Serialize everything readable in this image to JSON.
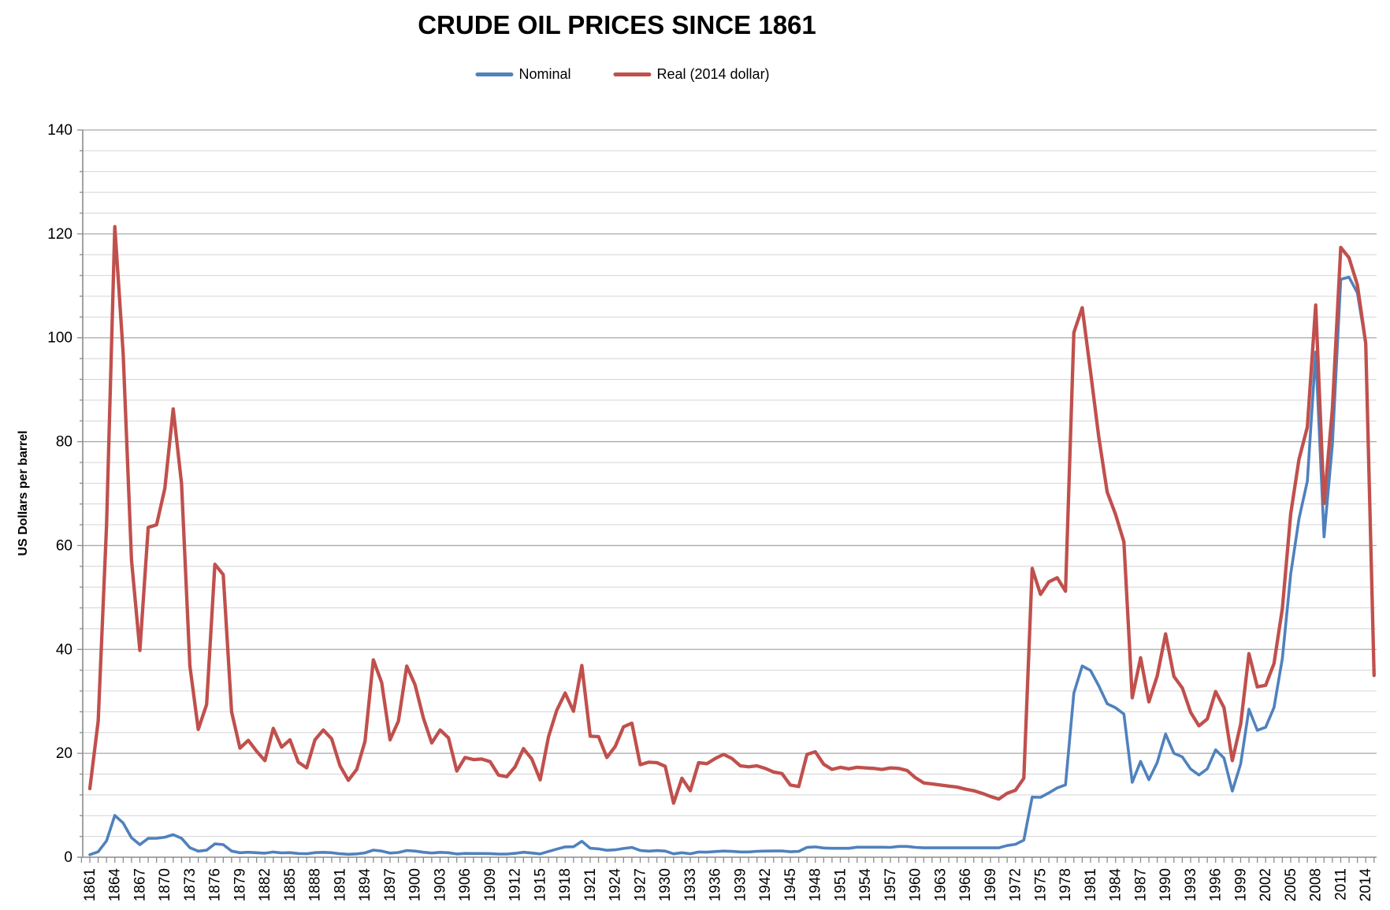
{
  "title": "CRUDE OIL PRICES SINCE 1861",
  "legend": [
    {
      "label": "Nominal",
      "color": "#4F81BD"
    },
    {
      "label": "Real (2014 dollar)",
      "color": "#C0504D"
    }
  ],
  "y_axis": {
    "title": "US Dollars per barrel",
    "min": 0,
    "max": 140,
    "major_step": 20,
    "minor_step": 4,
    "tick_labels": [
      "0",
      "20",
      "40",
      "60",
      "80",
      "100",
      "120",
      "140"
    ]
  },
  "x_axis": {
    "start_year": 1861,
    "end_year": 2015,
    "label_step": 3,
    "tick_labels": [
      "1861",
      "1864",
      "1867",
      "1870",
      "1873",
      "1876",
      "1879",
      "1882",
      "1885",
      "1888",
      "1891",
      "1894",
      "1897",
      "1900",
      "1903",
      "1906",
      "1909",
      "1912",
      "1915",
      "1918",
      "1921",
      "1924",
      "1927",
      "1930",
      "1933",
      "1936",
      "1939",
      "1942",
      "1945",
      "1948",
      "1951",
      "1954",
      "1957",
      "1960",
      "1963",
      "1966",
      "1969",
      "1972",
      "1975",
      "1978",
      "1981",
      "1984",
      "1987",
      "1990",
      "1993",
      "1996",
      "1999",
      "2002",
      "2005",
      "2008",
      "2011",
      "2014"
    ]
  },
  "colors": {
    "nominal_line": "#4F81BD",
    "real_line": "#C0504D",
    "minor_gridline": "#D4D4D4",
    "major_gridline": "#A9A9A9",
    "axis_line": "#8C8C8C",
    "tick_mark": "#8C8C8C"
  },
  "chart_data": {
    "type": "line",
    "title": "CRUDE OIL PRICES SINCE 1861",
    "xlabel": "",
    "ylabel": "US Dollars per barrel",
    "ylim": [
      0,
      140
    ],
    "grid": "horizontal-minor-every-4",
    "legend_position": "top-center",
    "x_start_year": 1861,
    "years_span": "1861-2015 (annual)",
    "series": [
      {
        "name": "Nominal",
        "color": "#4F81BD",
        "values": [
          0.49,
          1.05,
          3.15,
          8.06,
          6.59,
          3.74,
          2.41,
          3.63,
          3.64,
          3.86,
          4.34,
          3.64,
          1.83,
          1.17,
          1.35,
          2.56,
          2.42,
          1.19,
          0.86,
          0.95,
          0.86,
          0.78,
          1.0,
          0.84,
          0.88,
          0.71,
          0.67,
          0.88,
          0.94,
          0.87,
          0.67,
          0.56,
          0.64,
          0.84,
          1.36,
          1.18,
          0.79,
          0.91,
          1.29,
          1.19,
          0.96,
          0.8,
          0.94,
          0.86,
          0.62,
          0.73,
          0.72,
          0.72,
          0.7,
          0.61,
          0.61,
          0.74,
          0.95,
          0.81,
          0.64,
          1.1,
          1.56,
          1.98,
          2.01,
          3.07,
          1.73,
          1.61,
          1.34,
          1.43,
          1.68,
          1.88,
          1.3,
          1.17,
          1.27,
          1.19,
          0.65,
          0.87,
          0.67,
          1.0,
          0.97,
          1.09,
          1.18,
          1.13,
          1.02,
          1.02,
          1.14,
          1.19,
          1.2,
          1.21,
          1.05,
          1.12,
          1.9,
          1.99,
          1.78,
          1.71,
          1.71,
          1.71,
          1.93,
          1.93,
          1.93,
          1.93,
          1.9,
          2.08,
          2.08,
          1.9,
          1.8,
          1.8,
          1.8,
          1.8,
          1.8,
          1.8,
          1.8,
          1.8,
          1.8,
          1.8,
          2.24,
          2.48,
          3.29,
          11.58,
          11.53,
          12.38,
          13.33,
          13.92,
          31.61,
          36.83,
          35.93,
          32.97,
          29.55,
          28.78,
          27.56,
          14.43,
          18.44,
          14.92,
          18.23,
          23.73,
          20.0,
          19.32,
          16.97,
          15.82,
          17.02,
          20.67,
          19.09,
          12.72,
          17.97,
          28.5,
          24.44,
          25.02,
          28.83,
          38.27,
          54.52,
          65.14,
          72.39,
          97.26,
          61.67,
          79.5,
          111.26,
          111.67,
          108.66,
          98.95,
          null
        ]
      },
      {
        "name": "Real (2014 dollar)",
        "color": "#C0504D",
        "values": [
          13.2,
          26.2,
          63.8,
          121.4,
          97.0,
          57.2,
          39.8,
          63.5,
          64.0,
          71.0,
          86.3,
          71.9,
          36.8,
          24.6,
          29.4,
          56.4,
          54.4,
          28.0,
          21.0,
          22.5,
          20.4,
          18.6,
          24.8,
          21.2,
          22.6,
          18.3,
          17.2,
          22.6,
          24.5,
          22.8,
          17.6,
          14.8,
          16.9,
          22.3,
          38.0,
          33.6,
          22.6,
          26.2,
          36.8,
          33.2,
          26.8,
          22.0,
          24.5,
          23.0,
          16.6,
          19.2,
          18.8,
          18.9,
          18.4,
          15.8,
          15.5,
          17.4,
          20.9,
          18.9,
          14.9,
          23.2,
          28.3,
          31.6,
          28.1,
          36.9,
          23.3,
          23.2,
          19.2,
          21.3,
          25.1,
          25.8,
          17.8,
          18.3,
          18.2,
          17.5,
          10.4,
          15.2,
          12.8,
          18.2,
          18.0,
          19.0,
          19.8,
          19.0,
          17.6,
          17.4,
          17.6,
          17.1,
          16.4,
          16.1,
          13.9,
          13.6,
          19.8,
          20.3,
          17.9,
          16.9,
          17.3,
          17.0,
          17.3,
          17.2,
          17.1,
          16.9,
          17.2,
          17.1,
          16.7,
          15.3,
          14.3,
          14.1,
          13.9,
          13.7,
          13.5,
          13.1,
          12.8,
          12.3,
          11.7,
          11.2,
          12.3,
          12.9,
          15.2,
          55.6,
          50.6,
          53.0,
          53.8,
          51.2,
          101.0,
          105.8,
          93.4,
          80.8,
          70.3,
          66.0,
          60.7,
          30.7,
          38.4,
          29.9,
          34.9,
          43.0,
          34.8,
          32.6,
          27.9,
          25.3,
          26.6,
          31.9,
          28.8,
          18.6,
          25.6,
          39.2,
          32.8,
          33.1,
          37.3,
          47.9,
          66.1,
          76.6,
          82.8,
          106.3,
          68.1,
          86.3,
          117.4,
          115.4,
          110.2,
          98.9,
          35.0
        ]
      }
    ]
  }
}
